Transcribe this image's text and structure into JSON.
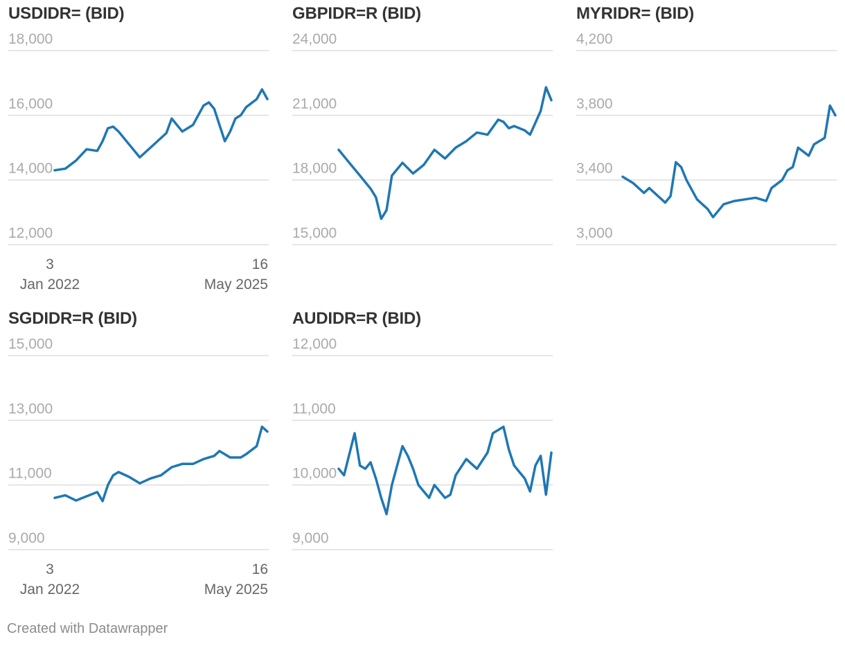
{
  "credit": "Created with Datawrapper",
  "colors": {
    "line": "#1f77b4",
    "grid": "#dddddd",
    "tick": "#aaaaaa",
    "xtick": "#666666",
    "title": "#333333"
  },
  "panels": [
    {
      "id": "usdidr",
      "title": "USDIDR= (BID)",
      "show_x_axis": true
    },
    {
      "id": "gbpidr",
      "title": "GBPIDR=R (BID)",
      "show_x_axis": false
    },
    {
      "id": "myridr",
      "title": "MYRIDR= (BID)",
      "show_x_axis": false
    },
    {
      "id": "sgdidr",
      "title": "SGDIDR=R (BID)",
      "show_x_axis": true
    },
    {
      "id": "audidr",
      "title": "AUDIDR=R (BID)",
      "show_x_axis": false
    }
  ],
  "x_axis": {
    "start_day": "3",
    "start_month": "Jan 2022",
    "end_day": "16",
    "end_month": "May 2025"
  },
  "chart_data": [
    {
      "type": "line",
      "title": "USDIDR= (BID)",
      "x_range": [
        "2022-01-03",
        "2025-05-16"
      ],
      "ylim": [
        12000,
        18000
      ],
      "yticks": [
        "18,000",
        "16,000",
        "14,000",
        "12,000"
      ],
      "ytick_values": [
        18000,
        16000,
        14000,
        12000
      ],
      "x": [
        "2022-01",
        "2022-03",
        "2022-05",
        "2022-07",
        "2022-09",
        "2022-10",
        "2022-11",
        "2022-12",
        "2023-01",
        "2023-03",
        "2023-05",
        "2023-07",
        "2023-09",
        "2023-10",
        "2023-11",
        "2024-01",
        "2024-03",
        "2024-04",
        "2024-05",
        "2024-06",
        "2024-07",
        "2024-08",
        "2024-09",
        "2024-10",
        "2024-11",
        "2024-12",
        "2025-01",
        "2025-03",
        "2025-04",
        "2025-05"
      ],
      "values": [
        14300,
        14350,
        14600,
        14950,
        14900,
        15200,
        15600,
        15650,
        15500,
        15100,
        14700,
        15000,
        15300,
        15450,
        15900,
        15500,
        15700,
        16000,
        16300,
        16400,
        16200,
        15700,
        15200,
        15500,
        15900,
        16000,
        16250,
        16500,
        16800,
        16500
      ]
    },
    {
      "type": "line",
      "title": "GBPIDR=R (BID)",
      "x_range": [
        "2022-01-03",
        "2025-05-16"
      ],
      "ylim": [
        15000,
        24000
      ],
      "yticks": [
        "24,000",
        "21,000",
        "18,000",
        "15,000"
      ],
      "ytick_values": [
        24000,
        21000,
        18000,
        15000
      ],
      "x": [
        "2022-01",
        "2022-03",
        "2022-05",
        "2022-07",
        "2022-08",
        "2022-09",
        "2022-10",
        "2022-11",
        "2023-01",
        "2023-03",
        "2023-05",
        "2023-07",
        "2023-09",
        "2023-11",
        "2024-01",
        "2024-03",
        "2024-05",
        "2024-07",
        "2024-08",
        "2024-09",
        "2024-10",
        "2024-12",
        "2025-01",
        "2025-03",
        "2025-04",
        "2025-05"
      ],
      "values": [
        19400,
        18800,
        18200,
        17600,
        17200,
        16200,
        16600,
        18200,
        18800,
        18300,
        18700,
        19400,
        19000,
        19500,
        19800,
        20200,
        20100,
        20800,
        20700,
        20400,
        20500,
        20300,
        20100,
        21200,
        22300,
        21700
      ]
    },
    {
      "type": "line",
      "title": "MYRIDR= (BID)",
      "x_range": [
        "2022-01-03",
        "2025-05-16"
      ],
      "ylim": [
        3000,
        4200
      ],
      "yticks": [
        "4,200",
        "3,800",
        "3,400",
        "3,000"
      ],
      "ytick_values": [
        4200,
        3800,
        3400,
        3000
      ],
      "x": [
        "2022-01",
        "2022-03",
        "2022-05",
        "2022-06",
        "2022-08",
        "2022-09",
        "2022-10",
        "2022-11",
        "2022-12",
        "2023-01",
        "2023-03",
        "2023-05",
        "2023-06",
        "2023-08",
        "2023-10",
        "2023-12",
        "2024-02",
        "2024-04",
        "2024-05",
        "2024-07",
        "2024-08",
        "2024-09",
        "2024-10",
        "2024-12",
        "2025-01",
        "2025-03",
        "2025-04",
        "2025-05"
      ],
      "values": [
        3420,
        3380,
        3320,
        3350,
        3290,
        3260,
        3300,
        3510,
        3480,
        3400,
        3280,
        3220,
        3170,
        3250,
        3270,
        3280,
        3290,
        3270,
        3350,
        3400,
        3460,
        3480,
        3600,
        3550,
        3620,
        3660,
        3860,
        3800
      ]
    },
    {
      "type": "line",
      "title": "SGDIDR=R (BID)",
      "x_range": [
        "2022-01-03",
        "2025-05-16"
      ],
      "ylim": [
        9000,
        15000
      ],
      "yticks": [
        "15,000",
        "13,000",
        "11,000",
        "9,000"
      ],
      "ytick_values": [
        15000,
        13000,
        11000,
        9000
      ],
      "x": [
        "2022-01",
        "2022-03",
        "2022-05",
        "2022-07",
        "2022-09",
        "2022-10",
        "2022-11",
        "2022-12",
        "2023-01",
        "2023-03",
        "2023-05",
        "2023-07",
        "2023-09",
        "2023-11",
        "2024-01",
        "2024-03",
        "2024-05",
        "2024-07",
        "2024-08",
        "2024-10",
        "2024-12",
        "2025-01",
        "2025-03",
        "2025-04",
        "2025-05"
      ],
      "values": [
        10600,
        10680,
        10520,
        10650,
        10780,
        10500,
        11000,
        11300,
        11400,
        11250,
        11050,
        11200,
        11300,
        11550,
        11650,
        11650,
        11800,
        11900,
        12050,
        11850,
        11850,
        11950,
        12200,
        12800,
        12650
      ]
    },
    {
      "type": "line",
      "title": "AUDIDR=R (BID)",
      "x_range": [
        "2022-01-03",
        "2025-05-16"
      ],
      "ylim": [
        9000,
        12000
      ],
      "yticks": [
        "12,000",
        "11,000",
        "10,000",
        "9,000"
      ],
      "ytick_values": [
        12000,
        11000,
        10000,
        9000
      ],
      "x": [
        "2022-01",
        "2022-02",
        "2022-04",
        "2022-05",
        "2022-06",
        "2022-07",
        "2022-08",
        "2022-09",
        "2022-10",
        "2022-11",
        "2022-12",
        "2023-01",
        "2023-02",
        "2023-03",
        "2023-04",
        "2023-06",
        "2023-07",
        "2023-09",
        "2023-10",
        "2023-11",
        "2024-01",
        "2024-03",
        "2024-05",
        "2024-06",
        "2024-08",
        "2024-09",
        "2024-10",
        "2024-11",
        "2024-12",
        "2025-01",
        "2025-02",
        "2025-03",
        "2025-04",
        "2025-05"
      ],
      "values": [
        10250,
        10150,
        10800,
        10300,
        10250,
        10350,
        10100,
        9800,
        9550,
        10000,
        10300,
        10600,
        10450,
        10250,
        10000,
        9800,
        10000,
        9800,
        9850,
        10150,
        10400,
        10250,
        10500,
        10800,
        10900,
        10550,
        10300,
        10200,
        10100,
        9900,
        10300,
        10450,
        9850,
        10500
      ]
    }
  ]
}
